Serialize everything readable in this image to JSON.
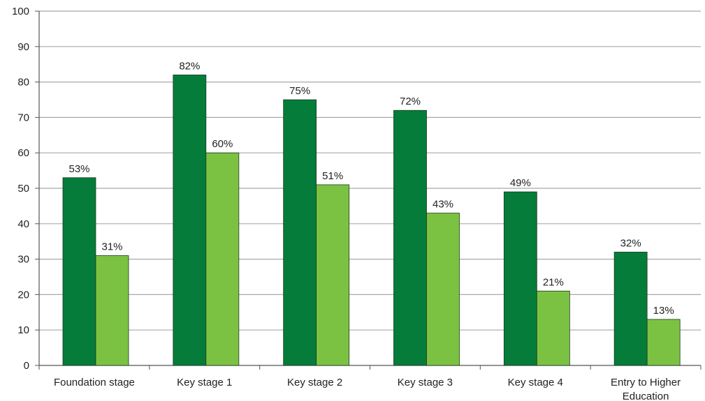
{
  "chart_data": {
    "type": "bar",
    "categories": [
      "Foundation stage",
      "Key stage 1",
      "Key stage 2",
      "Key stage 3",
      "Key stage 4",
      "Entry to Higher Education"
    ],
    "series": [
      {
        "values": [
          53,
          82,
          75,
          72,
          49,
          32
        ],
        "labels": [
          "53%",
          "82%",
          "75%",
          "72%",
          "49%",
          "32%"
        ],
        "color": "#057c3a"
      },
      {
        "values": [
          31,
          60,
          51,
          43,
          21,
          13
        ],
        "labels": [
          "31%",
          "60%",
          "51%",
          "43%",
          "21%",
          "13%"
        ],
        "color": "#7cc242"
      }
    ],
    "ylim": [
      0,
      100
    ],
    "yticks": [
      0,
      10,
      20,
      30,
      40,
      50,
      60,
      70,
      80,
      90,
      100
    ],
    "grid": true,
    "legend": "none",
    "title": "",
    "xlabel": "",
    "ylabel": ""
  }
}
